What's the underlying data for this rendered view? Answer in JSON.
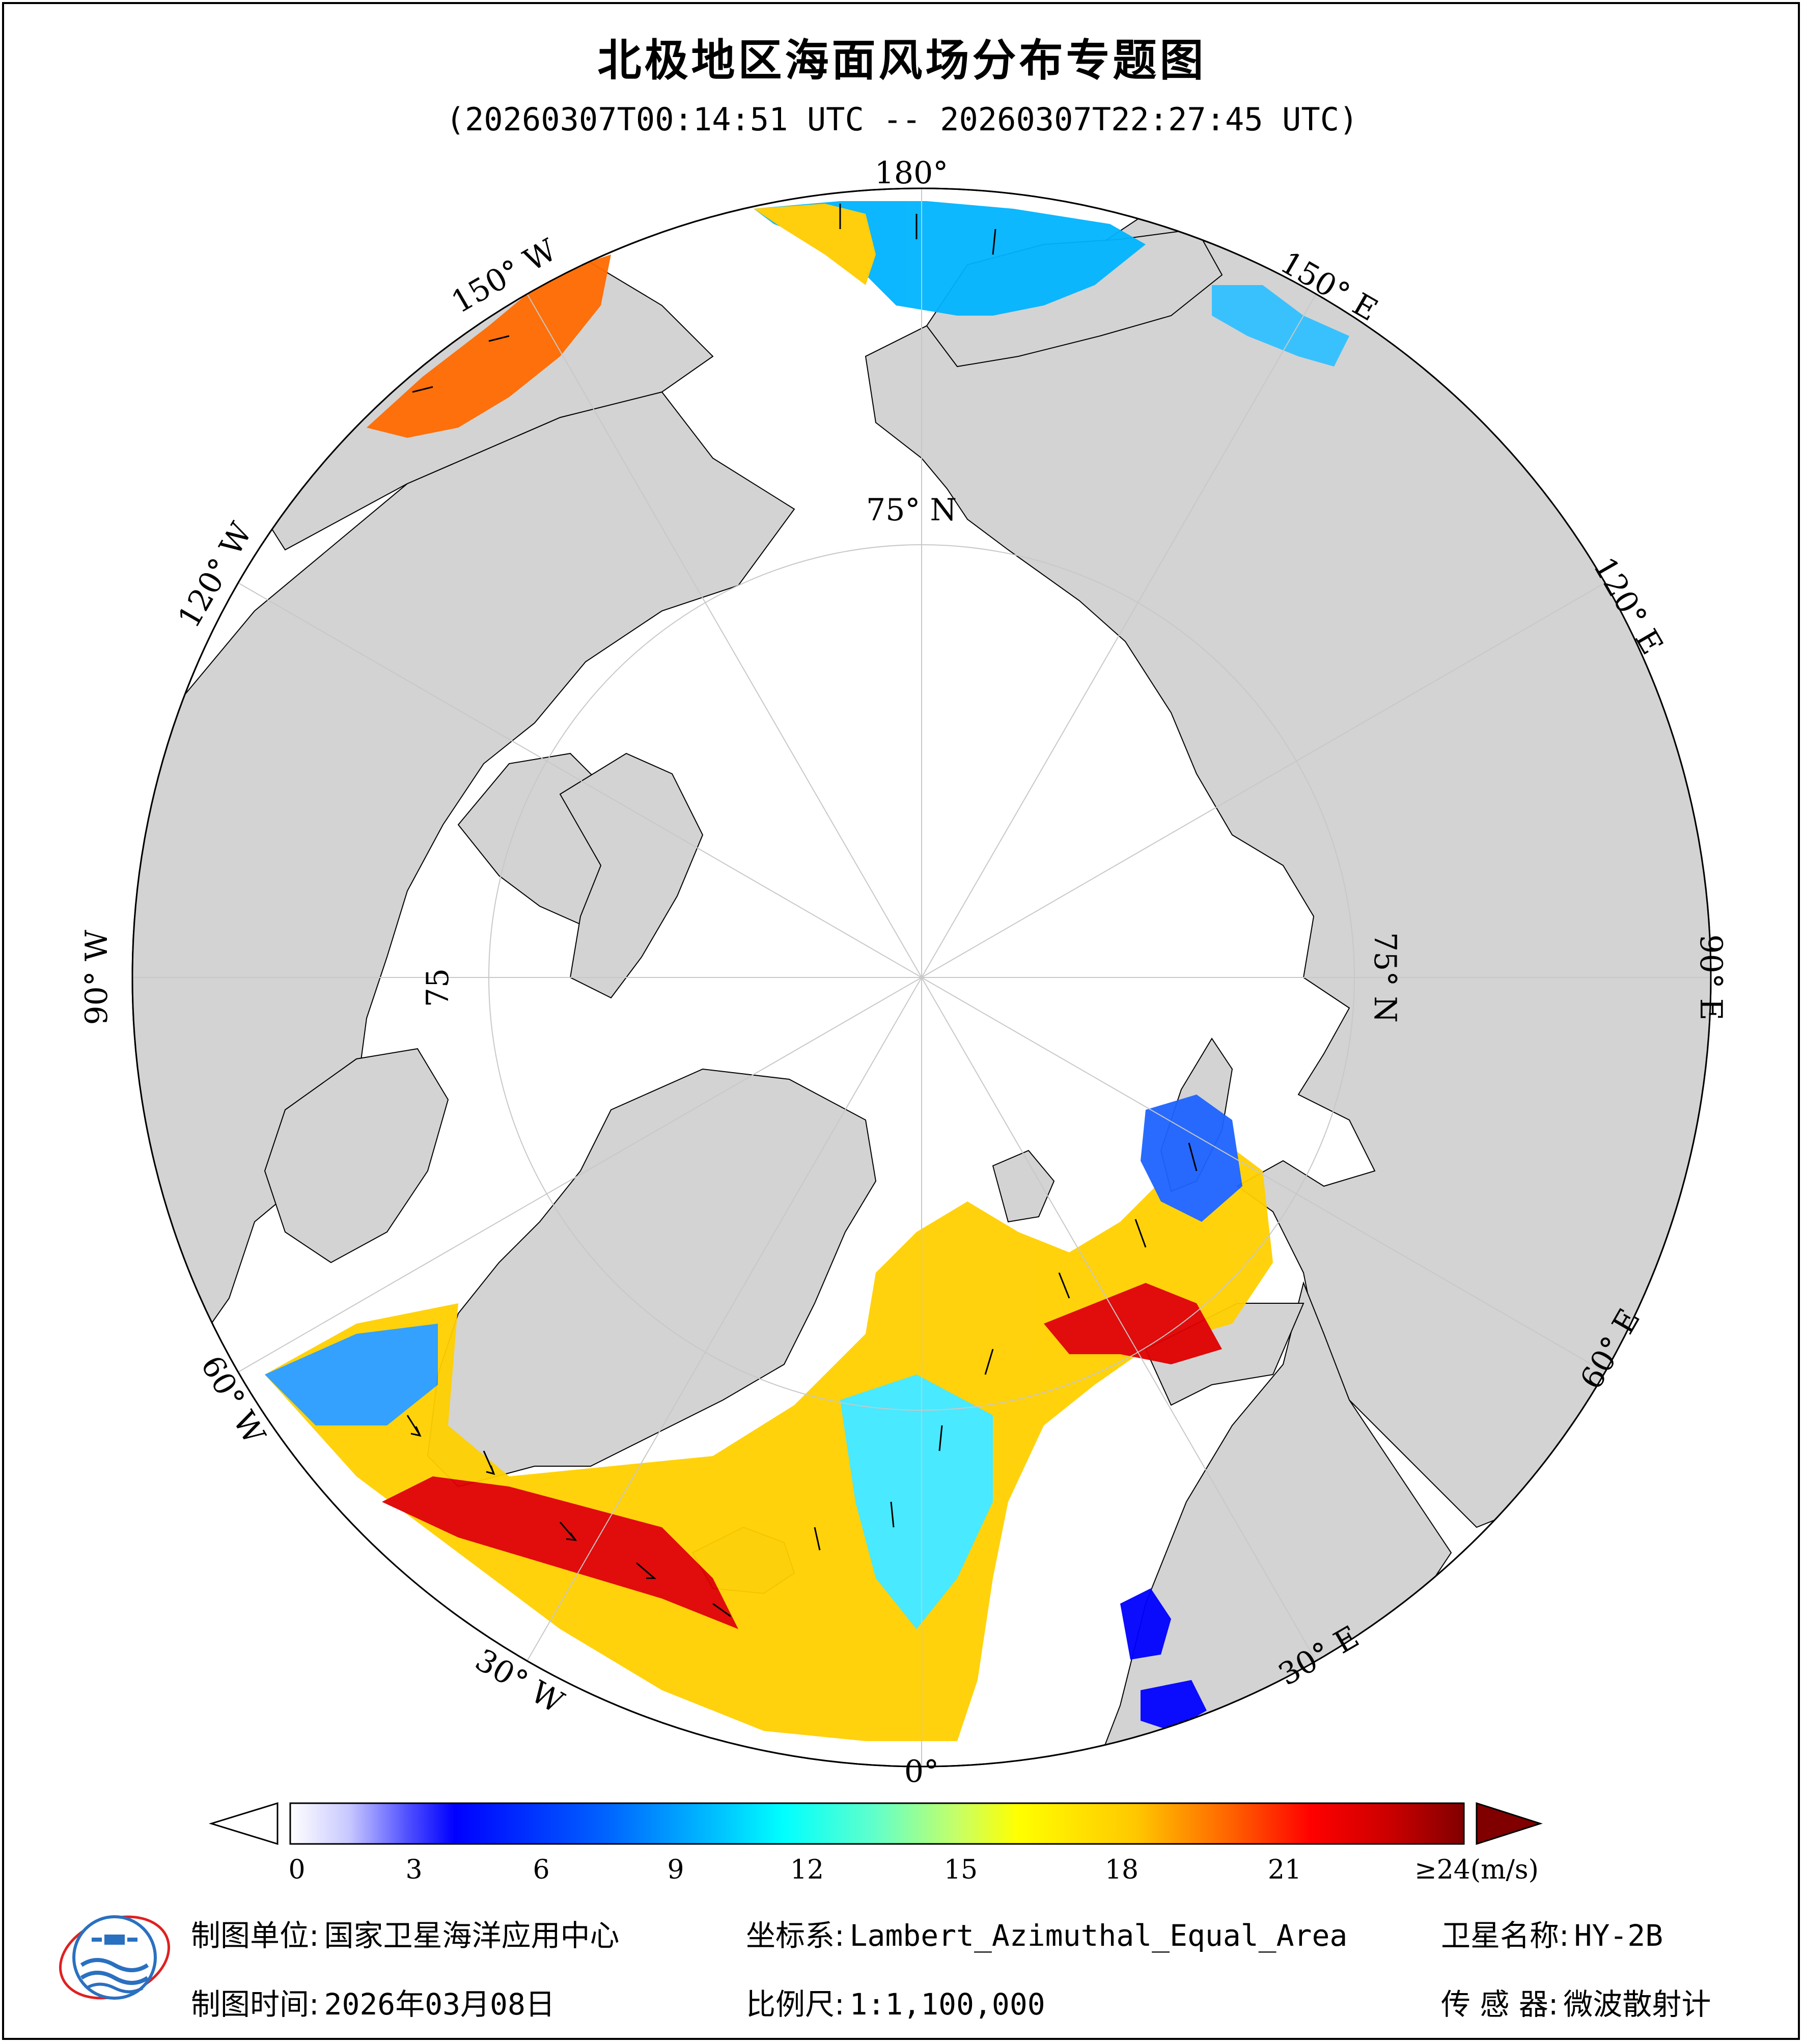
{
  "title": "北极地区海面风场分布专题图",
  "time_range": "(20260307T00:14:51 UTC -- 20260307T22:27:45 UTC)",
  "map": {
    "projection": "Lambert_Azimuthal_Equal_Area",
    "center": "North Pole",
    "ocean_color": "#ffffff",
    "land_color": "#d3d3d3",
    "graticule_color": "#c8c8c8",
    "longitude_labels": {
      "lon_0": "0°",
      "lon_30e": "30° E",
      "lon_60e": "60° E",
      "lon_90e": "90° E",
      "lon_120e": "120° E",
      "lon_150e": "150° E",
      "lon_180": "180°",
      "lon_150w": "150° W",
      "lon_120w": "120° W",
      "lon_90w": "90° W",
      "lon_60w": "60° W",
      "lon_30w": "30° W"
    },
    "latitude_labels": {
      "lat_75_top": "75° N",
      "lat_75_right": "75° N",
      "lat_75_left": "75"
    }
  },
  "colorbar": {
    "unit_label": "≥24(m/s)",
    "ticks": [
      "0",
      "3",
      "6",
      "9",
      "12",
      "15",
      "18",
      "21"
    ],
    "range": [
      0,
      24
    ],
    "colors": [
      "#ffffff",
      "#c8c8ff",
      "#5050ff",
      "#0000ff",
      "#0064ff",
      "#00c8ff",
      "#00ffff",
      "#64ffc8",
      "#c8ff64",
      "#ffff00",
      "#ffc800",
      "#ff6400",
      "#ff0000",
      "#c80000",
      "#800000"
    ]
  },
  "footer": {
    "unit_key": "制图单位:",
    "unit_value": "国家卫星海洋应用中心",
    "date_key": "制图时间:",
    "date_value": "2026年03月08日",
    "crs_key": "坐标系:",
    "crs_value": "Lambert_Azimuthal_Equal_Area",
    "scale_key": "比例尺:",
    "scale_value": "1:1,100,000",
    "sat_key": "卫星名称:",
    "sat_value": "HY-2B",
    "sensor_key": "传 感 器:",
    "sensor_value": "微波散射计"
  },
  "logo": {
    "org": "国家卫星海洋应用中心",
    "icon": "nsoas-logo"
  }
}
